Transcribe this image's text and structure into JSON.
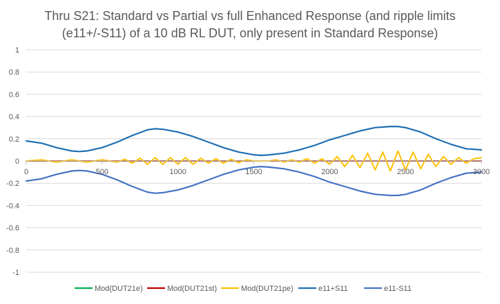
{
  "chart_data": {
    "type": "line",
    "title_lines": [
      "Thru S21: Standard vs Partial vs full Enhanced Response (and ripple limits",
      "(e11+/-S11) of a 10 dB RL DUT, only present in Standard Response)"
    ],
    "xlim": [
      0,
      3000
    ],
    "ylim": [
      -1,
      1
    ],
    "x_ticks": [
      0,
      500,
      1000,
      1500,
      2000,
      2500,
      3000
    ],
    "y_ticks": [
      "1",
      "0.8",
      "0.6",
      "0.4",
      "0.2",
      "0",
      "-0.2",
      "-0.4",
      "-0.6",
      "-0.8",
      "-1"
    ],
    "grid": "horizontal",
    "legend_position": "bottom",
    "series": [
      {
        "name": "Mod(DUT21e)",
        "color": "#00b050",
        "x": [
          0,
          500,
          1000,
          1500,
          2000,
          2500,
          3000
        ],
        "y": [
          0,
          0,
          0,
          0,
          0,
          0,
          0
        ]
      },
      {
        "name": "Mod(DUT21st)",
        "color": "#c00000",
        "x": [
          0,
          500,
          1000,
          1500,
          2000,
          2500,
          3000
        ],
        "y": [
          0,
          0,
          0,
          0,
          0,
          0,
          0
        ]
      },
      {
        "name": "Mod(DUT21pe)",
        "color": "#ffc000",
        "x": [
          0,
          100,
          200,
          300,
          400,
          500,
          600,
          650,
          700,
          750,
          800,
          850,
          900,
          950,
          1000,
          1050,
          1100,
          1150,
          1200,
          1250,
          1300,
          1350,
          1400,
          1450,
          1500,
          1550,
          1600,
          1650,
          1700,
          1750,
          1800,
          1850,
          1900,
          1950,
          2000,
          2050,
          2100,
          2150,
          2200,
          2250,
          2300,
          2350,
          2400,
          2450,
          2500,
          2550,
          2600,
          2650,
          2700,
          2750,
          2800,
          2850,
          2900,
          2950,
          3000
        ],
        "y": [
          0.0,
          0.01,
          -0.01,
          0.01,
          -0.01,
          0.01,
          -0.01,
          0.015,
          -0.02,
          0.025,
          -0.03,
          0.03,
          -0.03,
          0.03,
          -0.03,
          0.03,
          -0.03,
          0.025,
          -0.02,
          0.02,
          -0.02,
          0.015,
          -0.015,
          0.01,
          0.0,
          0.0,
          0.0,
          0.01,
          -0.01,
          0.01,
          -0.01,
          0.02,
          -0.02,
          0.02,
          -0.03,
          0.04,
          -0.05,
          0.05,
          -0.06,
          0.07,
          -0.08,
          0.08,
          -0.09,
          0.09,
          -0.08,
          0.08,
          -0.07,
          0.06,
          -0.05,
          0.04,
          -0.03,
          0.03,
          -0.02,
          0.02,
          0.03
        ]
      },
      {
        "name": "e11+S11",
        "color": "#1f6fb4",
        "x": [
          0,
          100,
          200,
          300,
          350,
          400,
          500,
          600,
          700,
          800,
          850,
          900,
          1000,
          1100,
          1200,
          1300,
          1400,
          1500,
          1550,
          1600,
          1700,
          1800,
          1900,
          2000,
          2100,
          2200,
          2300,
          2400,
          2450,
          2500,
          2600,
          2700,
          2800,
          2900,
          3000
        ],
        "y": [
          0.18,
          0.16,
          0.12,
          0.09,
          0.085,
          0.09,
          0.12,
          0.17,
          0.23,
          0.28,
          0.29,
          0.285,
          0.26,
          0.22,
          0.17,
          0.12,
          0.08,
          0.055,
          0.05,
          0.055,
          0.07,
          0.1,
          0.14,
          0.19,
          0.23,
          0.27,
          0.3,
          0.31,
          0.31,
          0.3,
          0.26,
          0.2,
          0.15,
          0.11,
          0.1
        ]
      },
      {
        "name": "e11-S11",
        "color": "#4472c4",
        "x": [
          0,
          100,
          200,
          300,
          350,
          400,
          500,
          600,
          700,
          800,
          850,
          900,
          1000,
          1100,
          1200,
          1300,
          1400,
          1500,
          1550,
          1600,
          1700,
          1800,
          1900,
          2000,
          2100,
          2200,
          2300,
          2400,
          2450,
          2500,
          2600,
          2700,
          2800,
          2900,
          3000
        ],
        "y": [
          -0.18,
          -0.16,
          -0.12,
          -0.09,
          -0.085,
          -0.09,
          -0.12,
          -0.17,
          -0.23,
          -0.28,
          -0.29,
          -0.285,
          -0.26,
          -0.22,
          -0.17,
          -0.12,
          -0.08,
          -0.055,
          -0.05,
          -0.055,
          -0.07,
          -0.1,
          -0.14,
          -0.19,
          -0.23,
          -0.27,
          -0.3,
          -0.31,
          -0.31,
          -0.3,
          -0.26,
          -0.2,
          -0.15,
          -0.11,
          -0.1
        ]
      }
    ]
  }
}
